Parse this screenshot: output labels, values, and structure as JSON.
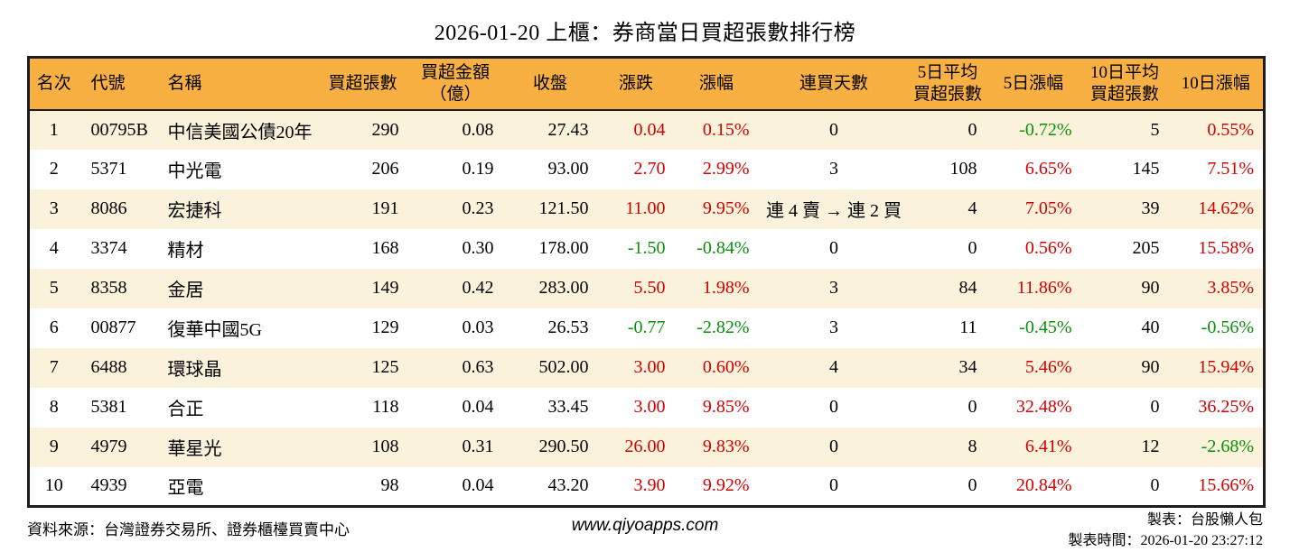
{
  "title": "2026-01-20 上櫃：券商當日買超張數排行榜",
  "colors": {
    "header_bg": "#F8B042",
    "row_alt_bg": "#FBF2DB",
    "up_red": "#D40000",
    "down_green": "#0A8F0A",
    "table_border": "#1C1C1C"
  },
  "table": {
    "headers": [
      {
        "key": "rank",
        "label": "名次"
      },
      {
        "key": "code",
        "label": "代號"
      },
      {
        "key": "name",
        "label": "名稱"
      },
      {
        "key": "shares",
        "label": "買超張數"
      },
      {
        "key": "amount",
        "label": "買超金額\n（億）"
      },
      {
        "key": "close",
        "label": "收盤"
      },
      {
        "key": "change",
        "label": "漲跌"
      },
      {
        "key": "change_pct",
        "label": "漲幅"
      },
      {
        "key": "streak",
        "label": "連買天數"
      },
      {
        "key": "avg5",
        "label": "5日平均\n買超張數"
      },
      {
        "key": "pct5",
        "label": "5日漲幅"
      },
      {
        "key": "avg10",
        "label": "10日平均\n買超張數"
      },
      {
        "key": "pct10",
        "label": "10日漲幅"
      }
    ],
    "rows": [
      {
        "rank": "1",
        "code": "00795B",
        "name": "中信美國公債20年",
        "shares": "290",
        "amount": "0.08",
        "close": "27.43",
        "change": "0.04",
        "change_pct": "0.15%",
        "streak": "0",
        "avg5": "0",
        "pct5": "-0.72%",
        "avg10": "5",
        "pct10": "0.55%"
      },
      {
        "rank": "2",
        "code": "5371",
        "name": "中光電",
        "shares": "206",
        "amount": "0.19",
        "close": "93.00",
        "change": "2.70",
        "change_pct": "2.99%",
        "streak": "3",
        "avg5": "108",
        "pct5": "6.65%",
        "avg10": "145",
        "pct10": "7.51%"
      },
      {
        "rank": "3",
        "code": "8086",
        "name": "宏捷科",
        "shares": "191",
        "amount": "0.23",
        "close": "121.50",
        "change": "11.00",
        "change_pct": "9.95%",
        "streak": "連 4 賣 → 連 2 買",
        "avg5": "4",
        "pct5": "7.05%",
        "avg10": "39",
        "pct10": "14.62%"
      },
      {
        "rank": "4",
        "code": "3374",
        "name": "精材",
        "shares": "168",
        "amount": "0.30",
        "close": "178.00",
        "change": "-1.50",
        "change_pct": "-0.84%",
        "streak": "0",
        "avg5": "0",
        "pct5": "0.56%",
        "avg10": "205",
        "pct10": "15.58%"
      },
      {
        "rank": "5",
        "code": "8358",
        "name": "金居",
        "shares": "149",
        "amount": "0.42",
        "close": "283.00",
        "change": "5.50",
        "change_pct": "1.98%",
        "streak": "3",
        "avg5": "84",
        "pct5": "11.86%",
        "avg10": "90",
        "pct10": "3.85%"
      },
      {
        "rank": "6",
        "code": "00877",
        "name": "復華中國5G",
        "shares": "129",
        "amount": "0.03",
        "close": "26.53",
        "change": "-0.77",
        "change_pct": "-2.82%",
        "streak": "3",
        "avg5": "11",
        "pct5": "-0.45%",
        "avg10": "40",
        "pct10": "-0.56%"
      },
      {
        "rank": "7",
        "code": "6488",
        "name": "環球晶",
        "shares": "125",
        "amount": "0.63",
        "close": "502.00",
        "change": "3.00",
        "change_pct": "0.60%",
        "streak": "4",
        "avg5": "34",
        "pct5": "5.46%",
        "avg10": "90",
        "pct10": "15.94%"
      },
      {
        "rank": "8",
        "code": "5381",
        "name": "合正",
        "shares": "118",
        "amount": "0.04",
        "close": "33.45",
        "change": "3.00",
        "change_pct": "9.85%",
        "streak": "0",
        "avg5": "0",
        "pct5": "32.48%",
        "avg10": "0",
        "pct10": "36.25%"
      },
      {
        "rank": "9",
        "code": "4979",
        "name": "華星光",
        "shares": "108",
        "amount": "0.31",
        "close": "290.50",
        "change": "26.00",
        "change_pct": "9.83%",
        "streak": "0",
        "avg5": "8",
        "pct5": "6.41%",
        "avg10": "12",
        "pct10": "-2.68%"
      },
      {
        "rank": "10",
        "code": "4939",
        "name": "亞電",
        "shares": "98",
        "amount": "0.04",
        "close": "43.20",
        "change": "3.90",
        "change_pct": "9.92%",
        "streak": "0",
        "avg5": "0",
        "pct5": "20.84%",
        "avg10": "0",
        "pct10": "15.66%"
      }
    ]
  },
  "footer": {
    "source": "資料來源：台灣證券交易所、證券櫃檯買賣中心",
    "website": "www.qiyoapps.com",
    "maker": "製表：台股懶人包",
    "made_time": "製表時間：2026-01-20 23:27:12"
  }
}
